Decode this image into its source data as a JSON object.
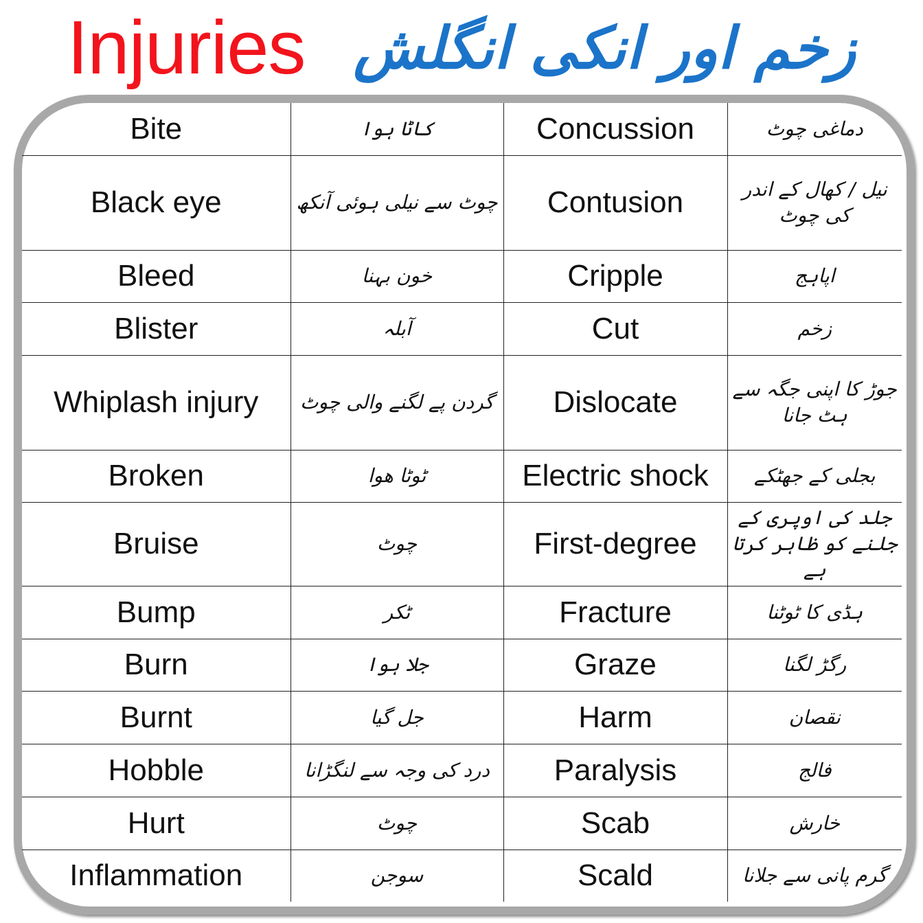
{
  "title": {
    "english": "Injuries",
    "urdu": "زخم اور انکی انگلش"
  },
  "colors": {
    "title_english": "#f2141c",
    "title_urdu": "#1b74c9",
    "frame": "#a8a8a8"
  },
  "rows": [
    {
      "en1": "Bite",
      "ur1": "کاٹا ہوا",
      "en2": "Concussion",
      "ur2": "دماغی چوٹ"
    },
    {
      "en1": "Black eye",
      "ur1": "چوٹ سے نیلی ہوئی آنکھ",
      "en2": "Contusion",
      "ur2": "نیل / کھال کے اندر کی چوٹ"
    },
    {
      "en1": "Bleed",
      "ur1": "خون بہنا",
      "en2": "Cripple",
      "ur2": "اپاہج"
    },
    {
      "en1": "Blister",
      "ur1": "آبلہ",
      "en2": "Cut",
      "ur2": "زخم"
    },
    {
      "en1": "Whiplash injury",
      "ur1": "گردن پے لگنے والی چوٹ",
      "en2": "Dislocate",
      "ur2": "جوڑ کا اپنی جگہ سے ہٹ جانا"
    },
    {
      "en1": "Broken",
      "ur1": "ٹوٹا ھوا",
      "en2": "Electric shock",
      "ur2": "بجلی کے جھٹکے"
    },
    {
      "en1": "Bruise",
      "ur1": "چوٹ",
      "en2": "First-degree",
      "ur2": "جلد کی اوپری کے جلنے کو ظاہر کرتا ہے"
    },
    {
      "en1": "Bump",
      "ur1": "ٹکر",
      "en2": "Fracture",
      "ur2": "ہڈی کا ٹوٹنا"
    },
    {
      "en1": "Burn",
      "ur1": "جلا ہوا",
      "en2": "Graze",
      "ur2": "رگڑ لگنا"
    },
    {
      "en1": "Burnt",
      "ur1": "جل گیا",
      "en2": "Harm",
      "ur2": "نقصان"
    },
    {
      "en1": "Hobble",
      "ur1": "درد کی وجہ سے لنگڑانا",
      "en2": "Paralysis",
      "ur2": "فالج"
    },
    {
      "en1": "Hurt",
      "ur1": "چوٹ",
      "en2": "Scab",
      "ur2": "خارش"
    },
    {
      "en1": "Inflammation",
      "ur1": "سوجن",
      "en2": "Scald",
      "ur2": "گرم پانی سے جلانا"
    }
  ]
}
